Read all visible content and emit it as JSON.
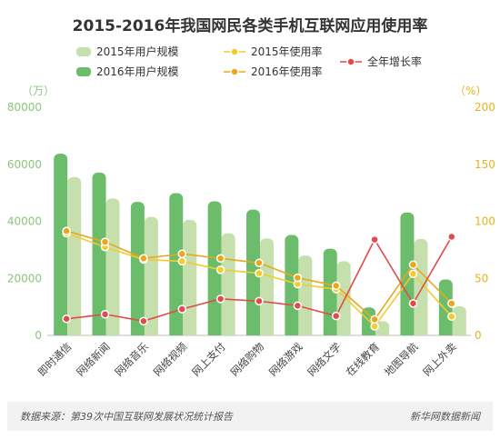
{
  "chart_data": {
    "type": "bar",
    "title": "2015-2016年我国网民各类手机互联网应用使用率",
    "y_unit_left": "（万）",
    "y_unit_right": "（%）",
    "ylim_left": [
      0,
      80000
    ],
    "yticks_left": [
      "0",
      "20000",
      "40000",
      "60000",
      "80000"
    ],
    "ylim_right": [
      0,
      200
    ],
    "yticks_right": [
      "0",
      "50",
      "100",
      "150",
      "200"
    ],
    "categories": [
      "即时通信",
      "网络新闻",
      "网络音乐",
      "网络视频",
      "网上支付",
      "网络购物",
      "网络游戏",
      "网络文学",
      "在线教育",
      "地图导航",
      "网上外卖"
    ],
    "bar_series": [
      {
        "name": "2015年用户规模",
        "color": "#c5e0ad",
        "values": [
          55500,
          48000,
          41500,
          40500,
          35800,
          34000,
          28000,
          26000,
          5000,
          33800,
          10200
        ]
      },
      {
        "name": "2016年用户规模",
        "color": "#6bbd6b",
        "values": [
          63700,
          57100,
          46800,
          49900,
          47000,
          44100,
          35200,
          30400,
          9800,
          43100,
          19600
        ]
      }
    ],
    "line_series": [
      {
        "name": "2015年使用率",
        "color": "#f3cb2e",
        "values": [
          89.5,
          77.5,
          66.5,
          65,
          57.5,
          54.5,
          45,
          40.5,
          8,
          54,
          16.5
        ]
      },
      {
        "name": "2016年使用率",
        "color": "#eaa521",
        "values": [
          91.5,
          82,
          67.5,
          71.5,
          67.5,
          63.5,
          50.5,
          43.5,
          14,
          62,
          28
        ]
      },
      {
        "name": "全年增长率",
        "color": "#e14b4b",
        "values": [
          14.5,
          18.5,
          12.5,
          23,
          32,
          30,
          26,
          17,
          84,
          28,
          86.5
        ]
      }
    ],
    "grid": false,
    "legend_position": "top"
  },
  "footer": {
    "source": "数据来源：第39次中国互联网发展状况统计报告",
    "brand": "新华网数据新闻"
  }
}
